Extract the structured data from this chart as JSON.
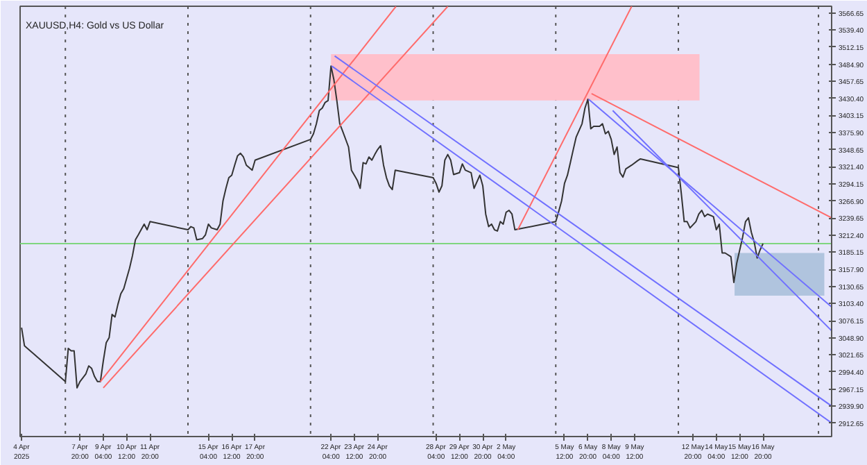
{
  "chart_data": {
    "type": "line",
    "title": "XAUUSD,H4:  Gold vs US Dollar",
    "xlim": [
      "2025-04-04T10:00",
      "2025-05-20T18:00"
    ],
    "ylim": [
      2891.4,
      3577.3
    ],
    "xticks": [
      {
        "value": "2025-04-04T12:00",
        "label": "4 Apr 2025"
      },
      {
        "value": "2025-04-07T20:00",
        "label": "7 Apr 20:00"
      },
      {
        "value": "2025-04-09T04:00",
        "label": "9 Apr 04:00"
      },
      {
        "value": "2025-04-10T12:00",
        "label": "10 Apr 12:00"
      },
      {
        "value": "2025-04-11T20:00",
        "label": "11 Apr 20:00"
      },
      {
        "value": "2025-04-15T04:00",
        "label": "15 Apr 04:00"
      },
      {
        "value": "2025-04-16T12:00",
        "label": "16 Apr 12:00"
      },
      {
        "value": "2025-04-17T20:00",
        "label": "17 Apr 20:00"
      },
      {
        "value": "2025-04-22T04:00",
        "label": "22 Apr 04:00"
      },
      {
        "value": "2025-04-23T12:00",
        "label": "23 Apr 12:00"
      },
      {
        "value": "2025-04-24T20:00",
        "label": "24 Apr 20:00"
      },
      {
        "value": "2025-04-28T04:00",
        "label": "28 Apr 04:00"
      },
      {
        "value": "2025-04-29T12:00",
        "label": "29 Apr 12:00"
      },
      {
        "value": "2025-04-30T20:00",
        "label": "30 Apr 20:00"
      },
      {
        "value": "2025-05-02T04:00",
        "label": "2 May 04:00"
      },
      {
        "value": "2025-05-05T12:00",
        "label": "5 May 12:00"
      },
      {
        "value": "2025-05-06T20:00",
        "label": "6 May 20:00"
      },
      {
        "value": "2025-05-08T04:00",
        "label": "8 May 04:00"
      },
      {
        "value": "2025-05-09T12:00",
        "label": "9 May 12:00"
      },
      {
        "value": "2025-05-12T20:00",
        "label": "12 May 20:00"
      },
      {
        "value": "2025-05-14T04:00",
        "label": "14 May 04:00"
      },
      {
        "value": "2025-05-15T12:00",
        "label": "15 May 12:00"
      },
      {
        "value": "2025-05-16T20:00",
        "label": "16 May 20:00"
      }
    ],
    "yticks": [
      {
        "value": 2912.65,
        "label": "2912.65"
      },
      {
        "value": 2939.9,
        "label": "2939.90"
      },
      {
        "value": 2967.15,
        "label": "2967.15"
      },
      {
        "value": 2994.4,
        "label": "2994.40"
      },
      {
        "value": 3021.65,
        "label": "3021.65"
      },
      {
        "value": 3048.9,
        "label": "3048.90"
      },
      {
        "value": 3076.15,
        "label": "3076.15"
      },
      {
        "value": 3103.4,
        "label": "3103.40"
      },
      {
        "value": 3130.65,
        "label": "3130.65"
      },
      {
        "value": 3157.9,
        "label": "3157.90"
      },
      {
        "value": 3185.15,
        "label": "3185.15"
      },
      {
        "value": 3212.4,
        "label": "3212.40"
      },
      {
        "value": 3239.65,
        "label": "3239.65"
      },
      {
        "value": 3266.9,
        "label": "3266.90"
      },
      {
        "value": 3294.15,
        "label": "3294.15"
      },
      {
        "value": 3321.4,
        "label": "3321.40"
      },
      {
        "value": 3348.65,
        "label": "3348.65"
      },
      {
        "value": 3375.9,
        "label": "3375.90"
      },
      {
        "value": 3403.15,
        "label": "3403.15"
      },
      {
        "value": 3430.4,
        "label": "3430.40"
      },
      {
        "value": 3457.65,
        "label": "3457.65"
      },
      {
        "value": 3484.9,
        "label": "3484.90"
      },
      {
        "value": 3512.15,
        "label": "3512.15"
      },
      {
        "value": 3539.4,
        "label": "3539.40"
      },
      {
        "value": 3566.65,
        "label": "3566.65"
      }
    ],
    "series": [
      {
        "type": "line",
        "color": "#ffc0cb",
        "x": [
          "2025-04-22T04:00",
          "2025-05-13T05:00"
        ],
        "values": [
          null,
          null
        ],
        "lower": [
          3427,
          3427
        ],
        "upper": [
          3501,
          3501
        ]
      },
      {
        "type": "line",
        "color": "#b0c4de",
        "x": [
          "2025-05-15T05:00",
          "2025-05-20T08:00"
        ],
        "values": [
          null,
          null
        ],
        "lower": [
          3116,
          3116
        ],
        "upper": [
          3184,
          3184
        ]
      },
      {
        "color": "#333333",
        "x": [
          "2025-04-04T12:00",
          "2025-04-04T16:00",
          "2025-04-04T20:00",
          "2025-04-07T00:00",
          "2025-04-07T04:00",
          "2025-04-07T08:00",
          "2025-04-07T12:00",
          "2025-04-07T16:00",
          "2025-04-07T20:00",
          "2025-04-08T04:00",
          "2025-04-08T08:00",
          "2025-04-08T12:00",
          "2025-04-08T16:00",
          "2025-04-08T20:00",
          "2025-04-09T00:00",
          "2025-04-09T04:00",
          "2025-04-09T08:00",
          "2025-04-09T12:00",
          "2025-04-09T16:00",
          "2025-04-09T20:00",
          "2025-04-10T00:00",
          "2025-04-10T04:00",
          "2025-04-10T08:00",
          "2025-04-10T16:00",
          "2025-04-10T20:00",
          "2025-04-11T00:00",
          "2025-04-11T04:00",
          "2025-04-11T12:00",
          "2025-04-11T16:00",
          "2025-04-11T20:00",
          "2025-04-14T00:00",
          "2025-04-14T04:00",
          "2025-04-14T08:00",
          "2025-04-14T12:00",
          "2025-04-14T20:00",
          "2025-04-15T00:00",
          "2025-04-15T04:00",
          "2025-04-15T08:00",
          "2025-04-15T16:00",
          "2025-04-15T20:00",
          "2025-04-16T00:00",
          "2025-04-16T04:00",
          "2025-04-16T08:00",
          "2025-04-16T12:00",
          "2025-04-16T16:00",
          "2025-04-16T20:00",
          "2025-04-17T00:00",
          "2025-04-17T04:00",
          "2025-04-17T08:00",
          "2025-04-17T16:00",
          "2025-04-17T20:00",
          "2025-04-21T00:00",
          "2025-04-21T04:00",
          "2025-04-21T08:00",
          "2025-04-21T12:00",
          "2025-04-21T16:00",
          "2025-04-21T20:00",
          "2025-04-22T00:00",
          "2025-04-22T04:00",
          "2025-04-22T08:00",
          "2025-04-22T12:00",
          "2025-04-22T16:00",
          "2025-04-22T20:00",
          "2025-04-23T04:00",
          "2025-04-23T08:00",
          "2025-04-23T16:00",
          "2025-04-23T20:00",
          "2025-04-24T00:00",
          "2025-04-24T04:00",
          "2025-04-24T08:00",
          "2025-04-24T12:00",
          "2025-04-24T16:00",
          "2025-04-24T20:00",
          "2025-04-25T00:00",
          "2025-04-25T04:00",
          "2025-04-25T08:00",
          "2025-04-25T12:00",
          "2025-04-25T16:00",
          "2025-04-25T20:00",
          "2025-04-28T00:00",
          "2025-04-28T04:00",
          "2025-04-28T08:00",
          "2025-04-28T12:00",
          "2025-04-28T16:00",
          "2025-04-28T20:00",
          "2025-04-29T00:00",
          "2025-04-29T04:00",
          "2025-04-29T12:00",
          "2025-04-29T16:00",
          "2025-04-29T20:00",
          "2025-04-30T04:00",
          "2025-04-30T08:00",
          "2025-04-30T16:00",
          "2025-04-30T20:00",
          "2025-05-01T00:00",
          "2025-05-01T04:00",
          "2025-05-01T08:00",
          "2025-05-01T12:00",
          "2025-05-01T16:00",
          "2025-05-01T20:00",
          "2025-05-02T00:00",
          "2025-05-02T04:00",
          "2025-05-02T08:00",
          "2025-05-02T12:00",
          "2025-05-02T16:00",
          "2025-05-05T00:00",
          "2025-05-05T04:00",
          "2025-05-05T08:00",
          "2025-05-05T12:00",
          "2025-05-05T16:00",
          "2025-05-05T20:00",
          "2025-05-06T00:00",
          "2025-05-06T04:00",
          "2025-05-06T12:00",
          "2025-05-06T16:00",
          "2025-05-06T20:00",
          "2025-05-07T00:00",
          "2025-05-07T04:00",
          "2025-05-07T12:00",
          "2025-05-07T16:00",
          "2025-05-07T20:00",
          "2025-05-08T00:00",
          "2025-05-08T04:00",
          "2025-05-08T08:00",
          "2025-05-08T12:00",
          "2025-05-08T16:00",
          "2025-05-08T20:00",
          "2025-05-09T00:00",
          "2025-05-09T08:00",
          "2025-05-09T16:00",
          "2025-05-09T20:00",
          "2025-05-12T00:00",
          "2025-05-12T04:00",
          "2025-05-12T08:00",
          "2025-05-12T12:00",
          "2025-05-12T16:00",
          "2025-05-13T00:00",
          "2025-05-13T04:00",
          "2025-05-13T08:00",
          "2025-05-13T12:00",
          "2025-05-13T16:00",
          "2025-05-14T00:00",
          "2025-05-14T04:00",
          "2025-05-14T08:00",
          "2025-05-14T12:00",
          "2025-05-14T16:00",
          "2025-05-15T00:00",
          "2025-05-15T04:00",
          "2025-05-15T08:00",
          "2025-05-15T16:00",
          "2025-05-15T20:00",
          "2025-05-16T00:00",
          "2025-05-16T04:00",
          "2025-05-16T08:00",
          "2025-05-16T12:00",
          "2025-05-16T16:00",
          "2025-05-16T20:00"
        ],
        "values": [
          3065,
          3036,
          3032,
          2979,
          3032,
          3028,
          3028,
          2969,
          2979,
          2991,
          3004,
          3000,
          2987,
          2979,
          2979,
          3012,
          3041,
          3049,
          3086,
          3082,
          3102,
          3119,
          3127,
          3160,
          3180,
          3205,
          3213,
          3230,
          3221,
          3234,
          3221,
          3226,
          3224,
          3205,
          3207,
          3213,
          3230,
          3224,
          3221,
          3230,
          3267,
          3287,
          3304,
          3308,
          3324,
          3339,
          3343,
          3337,
          3324,
          3316,
          3332,
          3365,
          3374,
          3390,
          3411,
          3415,
          3424,
          3427,
          3482,
          3460,
          3427,
          3390,
          3378,
          3353,
          3316,
          3300,
          3287,
          3328,
          3326,
          3337,
          3332,
          3341,
          3349,
          3355,
          3324,
          3304,
          3291,
          3285,
          3316,
          3304,
          3295,
          3281,
          3291,
          3332,
          3341,
          3332,
          3309,
          3312,
          3326,
          3316,
          3312,
          3287,
          3308,
          3291,
          3246,
          3226,
          3230,
          3221,
          3219,
          3234,
          3230,
          3249,
          3252,
          3246,
          3221,
          3234,
          3250,
          3267,
          3295,
          3308,
          3328,
          3349,
          3369,
          3390,
          3415,
          3429,
          3382,
          3386,
          3386,
          3390,
          3374,
          3378,
          3365,
          3341,
          3353,
          3312,
          3305,
          3318,
          3324,
          3331,
          3334,
          3320,
          3279,
          3234,
          3234,
          3224,
          3234,
          3246,
          3252,
          3242,
          3246,
          3242,
          3221,
          3230,
          3184,
          3184,
          3178,
          3137,
          3168,
          3209,
          3234,
          3240,
          3217,
          3201,
          3176,
          3189,
          3199
        ]
      },
      {
        "type": "line",
        "color": "#ff6b6b",
        "x": [
          "2025-04-09T00:00",
          "2025-04-25T21:00"
        ],
        "values": [
          2979,
          3577
        ]
      },
      {
        "type": "line",
        "color": "#ff6b6b",
        "x": [
          "2025-04-09T04:00",
          "2025-04-28T20:00"
        ],
        "values": [
          2969,
          3577
        ]
      },
      {
        "type": "line",
        "color": "#ff6b6b",
        "x": [
          "2025-05-02T20:00",
          "2025-05-09T08:00"
        ],
        "values": [
          3221,
          3577
        ]
      },
      {
        "type": "line",
        "color": "#ff6b6b",
        "x": [
          "2025-05-07T01:00",
          "2025-05-20T18:00"
        ],
        "values": [
          3438,
          3240
        ]
      },
      {
        "type": "line",
        "color": "#7070ff",
        "x": [
          "2025-04-22T09:00",
          "2025-05-20T18:00"
        ],
        "values": [
          3498,
          2940
        ]
      },
      {
        "type": "line",
        "color": "#7070ff",
        "x": [
          "2025-04-22T05:00",
          "2025-05-20T18:00"
        ],
        "values": [
          3482,
          2913
        ]
      },
      {
        "type": "line",
        "color": "#7070ff",
        "x": [
          "2025-05-06T21:00",
          "2025-05-20T18:00"
        ],
        "values": [
          3429,
          3098
        ]
      },
      {
        "type": "line",
        "color": "#7070ff",
        "x": [
          "2025-05-08T06:00",
          "2025-05-20T18:00"
        ],
        "values": [
          3411,
          3060
        ]
      }
    ],
    "ref_lines": [
      {
        "axis": "y",
        "value": 3199,
        "color": "#7fd67f",
        "line_style": "solid"
      },
      {
        "axis": "x",
        "value": "2025-04-07T00:00",
        "color": "#555555",
        "line_style": "dotted"
      },
      {
        "axis": "x",
        "value": "2025-04-14T00:00",
        "color": "#555555",
        "line_style": "dotted"
      },
      {
        "axis": "x",
        "value": "2025-04-21T00:00",
        "color": "#555555",
        "line_style": "dotted"
      },
      {
        "axis": "x",
        "value": "2025-04-28T00:00",
        "color": "#555555",
        "line_style": "dotted"
      },
      {
        "axis": "x",
        "value": "2025-05-05T00:00",
        "color": "#555555",
        "line_style": "dotted"
      },
      {
        "axis": "x",
        "value": "2025-05-12T00:00",
        "color": "#555555",
        "line_style": "dotted"
      },
      {
        "axis": "x",
        "value": "2025-05-20T00:00",
        "color": "#555555",
        "line_style": "dotted"
      }
    ]
  }
}
